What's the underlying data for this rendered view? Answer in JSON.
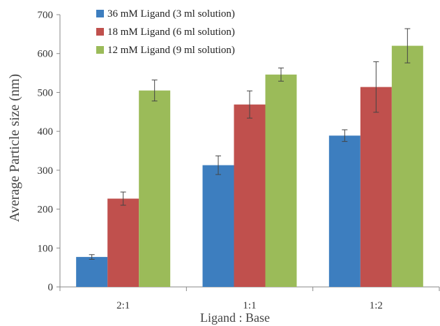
{
  "chart_data": {
    "type": "bar",
    "xlabel": "Ligand : Base",
    "ylabel": "Average Particle size (nm)",
    "categories": [
      "2:1",
      "1:1",
      "1:2"
    ],
    "ylim": [
      0,
      700
    ],
    "yticks": [
      0,
      100,
      200,
      300,
      400,
      500,
      600,
      700
    ],
    "grid": false,
    "legend_position": "top-left",
    "series": [
      {
        "name": "36 mM Ligand (3 ml solution)",
        "color": "#3d7ebf",
        "values": [
          77,
          313,
          389
        ],
        "errors": [
          6,
          24,
          15
        ]
      },
      {
        "name": "18 mM Ligand (6 ml solution)",
        "color": "#c0504d",
        "values": [
          227,
          469,
          514
        ],
        "errors": [
          17,
          35,
          65
        ]
      },
      {
        "name": "12 mM Ligand (9 ml solution)",
        "color": "#9bbb59",
        "values": [
          505,
          546,
          620
        ],
        "errors": [
          27,
          17,
          44
        ]
      }
    ]
  }
}
